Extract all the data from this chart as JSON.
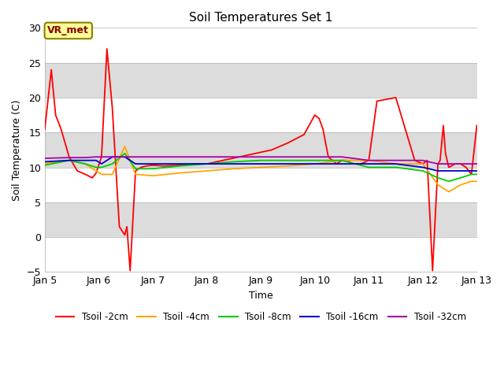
{
  "title": "Soil Temperatures Set 1",
  "xlabel": "Time",
  "ylabel": "Soil Temperature (C)",
  "ylim": [
    -5,
    30
  ],
  "yticks": [
    -5,
    0,
    5,
    10,
    15,
    20,
    25,
    30
  ],
  "figsize": [
    6.4,
    4.8
  ],
  "dpi": 100,
  "annotation_text": "VR_met",
  "annotation_color": "#8B0000",
  "annotation_facecolor": "#ffff99",
  "annotation_edgecolor": "#8B8000",
  "series_order": [
    "Tsoil -2cm",
    "Tsoil -4cm",
    "Tsoil -8cm",
    "Tsoil -16cm",
    "Tsoil -32cm"
  ],
  "series": {
    "Tsoil -2cm": {
      "color": "#ff0000",
      "x": [
        5.0,
        5.12,
        5.2,
        5.3,
        5.45,
        5.6,
        5.75,
        5.88,
        5.95,
        6.05,
        6.15,
        6.25,
        6.38,
        6.48,
        6.52,
        6.58,
        6.68,
        6.78,
        6.88,
        7.0,
        7.2,
        7.5,
        7.8,
        8.0,
        8.3,
        8.6,
        8.9,
        9.2,
        9.5,
        9.8,
        10.0,
        10.08,
        10.15,
        10.25,
        10.4,
        10.5,
        10.6,
        10.7,
        10.85,
        11.0,
        11.15,
        11.5,
        11.85,
        12.0,
        12.08,
        12.18,
        12.28,
        12.32,
        12.38,
        12.42,
        12.48,
        12.6,
        12.7,
        12.8,
        12.9,
        13.0
      ],
      "y": [
        15.5,
        24.0,
        17.5,
        15.5,
        11.5,
        9.5,
        9.0,
        8.5,
        9.2,
        11.5,
        27.0,
        18.5,
        1.5,
        0.3,
        1.5,
        -4.8,
        9.5,
        10.0,
        10.2,
        10.3,
        10.2,
        10.3,
        10.5,
        10.5,
        11.0,
        11.5,
        12.0,
        12.5,
        13.5,
        14.7,
        17.5,
        17.0,
        15.5,
        11.5,
        10.5,
        11.0,
        11.0,
        10.5,
        10.5,
        11.0,
        19.5,
        20.0,
        11.0,
        10.5,
        11.0,
        -4.8,
        10.5,
        11.0,
        16.0,
        12.0,
        10.0,
        10.5,
        10.5,
        10.0,
        9.0,
        16.0
      ]
    },
    "Tsoil -4cm": {
      "color": "#ffa500",
      "x": [
        5.0,
        5.45,
        5.75,
        5.95,
        6.05,
        6.25,
        6.48,
        6.68,
        7.0,
        7.5,
        8.0,
        8.5,
        9.0,
        9.5,
        10.0,
        10.5,
        11.0,
        11.5,
        12.0,
        12.28,
        12.48,
        12.7,
        12.9,
        13.0
      ],
      "y": [
        10.5,
        11.0,
        10.5,
        9.5,
        9.0,
        9.0,
        13.0,
        9.0,
        8.8,
        9.2,
        9.5,
        9.8,
        10.0,
        10.2,
        10.5,
        11.0,
        11.0,
        10.5,
        10.5,
        7.5,
        6.5,
        7.5,
        8.0,
        8.0
      ]
    },
    "Tsoil -8cm": {
      "color": "#00cc00",
      "x": [
        5.0,
        5.45,
        5.75,
        5.95,
        6.05,
        6.25,
        6.48,
        6.68,
        7.0,
        7.5,
        8.0,
        8.5,
        9.0,
        9.5,
        10.0,
        10.5,
        11.0,
        11.5,
        12.0,
        12.28,
        12.48,
        12.7,
        12.9,
        13.0
      ],
      "y": [
        10.3,
        11.0,
        10.5,
        10.0,
        10.0,
        10.5,
        12.0,
        9.8,
        9.8,
        10.2,
        10.5,
        10.8,
        11.0,
        11.0,
        11.0,
        11.0,
        10.0,
        10.0,
        9.5,
        8.5,
        8.0,
        8.5,
        9.0,
        9.0
      ]
    },
    "Tsoil -16cm": {
      "color": "#0000cc",
      "x": [
        5.0,
        5.45,
        5.75,
        5.95,
        6.05,
        6.25,
        6.48,
        6.68,
        7.0,
        7.5,
        8.0,
        8.5,
        9.0,
        9.5,
        10.0,
        10.5,
        11.0,
        11.5,
        12.0,
        12.28,
        12.48,
        12.7,
        12.9,
        13.0
      ],
      "y": [
        10.8,
        11.0,
        11.0,
        11.0,
        10.5,
        11.5,
        11.5,
        10.5,
        10.5,
        10.5,
        10.5,
        10.5,
        10.5,
        10.5,
        10.5,
        10.5,
        10.5,
        10.5,
        10.0,
        9.5,
        9.5,
        9.5,
        9.5,
        9.5
      ]
    },
    "Tsoil -32cm": {
      "color": "#aa00aa",
      "x": [
        5.0,
        5.45,
        5.75,
        5.95,
        6.05,
        6.25,
        6.48,
        6.68,
        7.0,
        7.5,
        8.0,
        8.5,
        9.0,
        9.5,
        10.0,
        10.5,
        11.0,
        11.5,
        12.0,
        12.28,
        12.48,
        12.7,
        12.9,
        13.0
      ],
      "y": [
        11.3,
        11.4,
        11.4,
        11.5,
        11.5,
        11.5,
        11.5,
        11.5,
        11.5,
        11.5,
        11.5,
        11.5,
        11.5,
        11.5,
        11.5,
        11.5,
        11.0,
        11.0,
        11.0,
        10.5,
        10.5,
        10.5,
        10.5,
        10.5
      ]
    }
  },
  "xtick_positions": [
    5,
    6,
    7,
    8,
    9,
    10,
    11,
    12,
    13
  ],
  "xtick_labels": [
    "Jan 5",
    "Jan 6",
    "Jan 7",
    "Jan 8",
    "Jan 9",
    "Jan 10",
    "Jan 11",
    "Jan 12",
    "Jan 13"
  ],
  "band_colors": [
    "#ffffff",
    "#dcdcdc"
  ],
  "linewidth": 1.3
}
